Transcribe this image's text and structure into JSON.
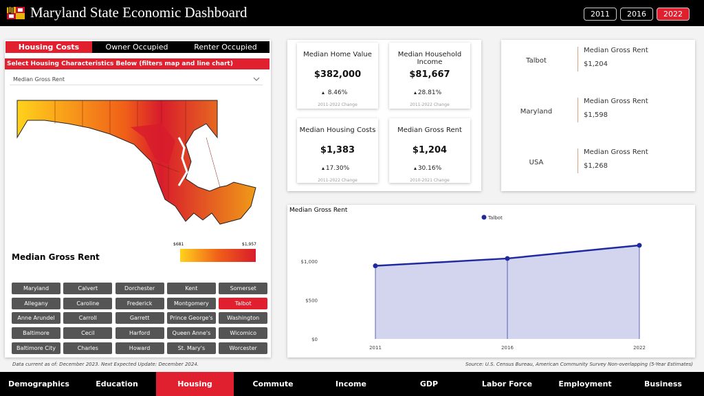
{
  "header": {
    "title": "Maryland State Economic Dashboard",
    "years": [
      "2011",
      "2016",
      "2022"
    ]
  },
  "housing_tabs": [
    "Housing Costs",
    "Owner Occupied",
    "Renter Occupied"
  ],
  "filter_prompt": "Select Housing Characteristics Below (filters map and line chart)",
  "dropdown": "Median Gross Rent",
  "map": {
    "title": "Median Gross Rent",
    "legend_min": "$681",
    "legend_max": "$1,957"
  },
  "counties": [
    [
      "Maryland",
      "Calvert",
      "Dorchester",
      "Kent",
      "Somerset"
    ],
    [
      "Allegany",
      "Caroline",
      "Frederick",
      "Montgomery",
      "Talbot"
    ],
    [
      "Anne Arundel",
      "Carroll",
      "Garrett",
      "Prince George's",
      "Washington"
    ],
    [
      "Baltimore",
      "Cecil",
      "Harford",
      "Queen Anne's",
      "Wicomico"
    ],
    [
      "Baltimore City",
      "Charles",
      "Howard",
      "St. Mary's",
      "Worcester"
    ]
  ],
  "kpis": [
    {
      "title": "Median Home Value",
      "value": "$382,000",
      "change": "8.46%",
      "period": "2011-2022 Change"
    },
    {
      "title": "Median Household Income",
      "value": "$81,667",
      "change": "28.81%",
      "period": "2011-2022 Change"
    },
    {
      "title": "Median Housing Costs",
      "value": "$1,383",
      "change": "17.30%",
      "period": "2011-2022 Change"
    },
    {
      "title": "Median Gross Rent",
      "value": "$1,204",
      "change": "30.16%",
      "period": "2010-2021 Change"
    }
  ],
  "comparisons": [
    {
      "area": "Talbot",
      "measure": "Median Gross Rent",
      "value": "$1,204"
    },
    {
      "area": "Maryland",
      "measure": "Median Gross Rent",
      "value": "$1,598"
    },
    {
      "area": "USA",
      "measure": "Median Gross Rent",
      "value": "$1,268"
    }
  ],
  "chart_data": {
    "type": "area",
    "title": "Median Gross Rent",
    "categories": [
      "2011",
      "2016",
      "2022"
    ],
    "series": [
      {
        "name": "Talbot",
        "color": "#1f2a9e",
        "values": [
          940,
          1035,
          1204
        ]
      }
    ],
    "ylim": [
      0,
      1450
    ],
    "yticks": [
      {
        "value": 0,
        "label": "$0"
      },
      {
        "value": 500,
        "label": "$500"
      },
      {
        "value": 1000,
        "label": "$1,000"
      }
    ]
  },
  "footer": {
    "data_note": "Data current as of: December 2023. Next Expected Update: December 2024.",
    "source": "Source: U.S. Census Bureau, American Community Survey Non-overlapping (5-Year Estimates)"
  },
  "nav": [
    "Demographics",
    "Education",
    "Housing",
    "Commute",
    "Income",
    "GDP",
    "Labor Force",
    "Employment",
    "Business"
  ]
}
